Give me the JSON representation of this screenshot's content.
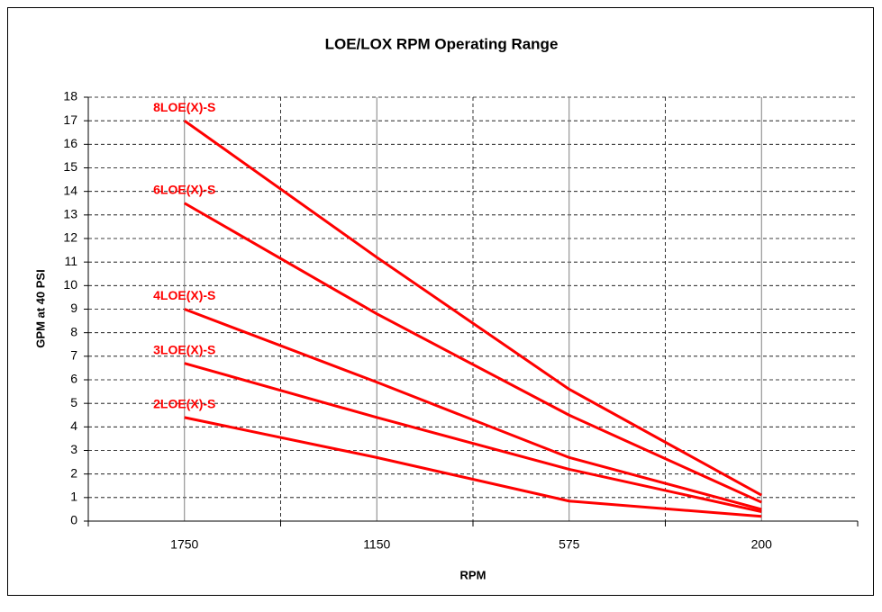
{
  "chart_data": {
    "type": "line",
    "title": "LOE/LOX RPM Operating Range",
    "x_label": "RPM",
    "y_label": "GPM at 40 PSI",
    "categories": [
      "1750",
      "1150",
      "575",
      "200"
    ],
    "series": [
      {
        "name": "8LOE(X)-S",
        "color": "#ff0000",
        "values": [
          17,
          11.2,
          5.6,
          1.1
        ]
      },
      {
        "name": "6LOE(X)-S",
        "color": "#ff0000",
        "values": [
          13.5,
          8.8,
          4.5,
          0.8
        ]
      },
      {
        "name": "4LOE(X)-S",
        "color": "#ff0000",
        "values": [
          9,
          5.9,
          2.7,
          0.5
        ]
      },
      {
        "name": "3LOE(X)-S",
        "color": "#ff0000",
        "values": [
          6.7,
          4.4,
          2.2,
          0.4
        ]
      },
      {
        "name": "2LOE(X)-S",
        "color": "#ff0000",
        "values": [
          4.4,
          2.7,
          0.85,
          0.2
        ]
      }
    ],
    "ylim": [
      0,
      18
    ],
    "yticks": [
      0,
      1,
      2,
      3,
      4,
      5,
      6,
      7,
      8,
      9,
      10,
      11,
      12,
      13,
      14,
      15,
      16,
      17,
      18
    ],
    "grid": true
  }
}
